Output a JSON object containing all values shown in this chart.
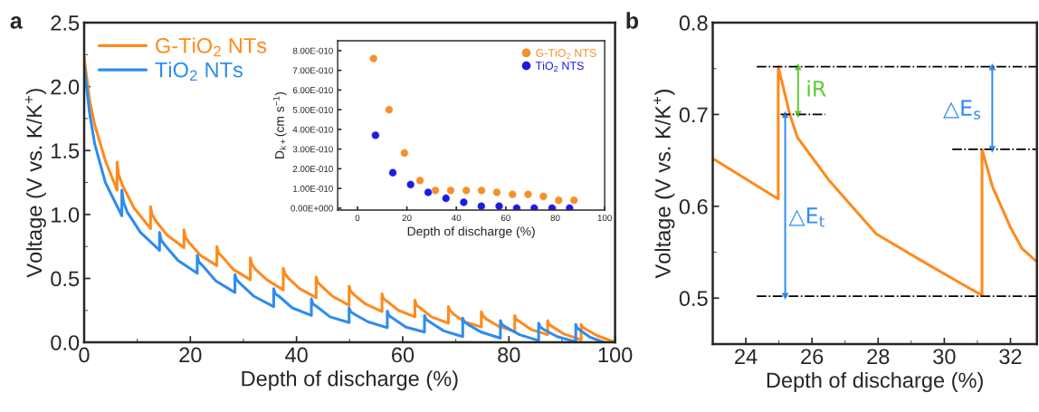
{
  "chart_data": [
    {
      "type": "line",
      "title": "a",
      "xlabel": "Depth of discharge (%)",
      "ylabel": "Voltage (V vs. K/K$^{+}$)",
      "xlim": [
        0,
        100
      ],
      "xticks": [
        0,
        20,
        40,
        60,
        80,
        100
      ],
      "ylim": [
        0,
        2.5
      ],
      "yticks": [
        {
          "value": 0,
          "label": "0.0"
        },
        0.5,
        {
          "value": 1,
          "label": "1.0"
        },
        1.5,
        {
          "value": 2,
          "label": "2.0"
        },
        2.5
      ],
      "legend": "top left",
      "grid": false,
      "series": [
        {
          "name": "G-TiO$_{2}$ NTs",
          "color": "#ff8a1c",
          "x": [
            0,
            1,
            2,
            4,
            6.2,
            6.2,
            6.5,
            7.2,
            9.4,
            12.5,
            12.5,
            12.8,
            13.5,
            15.6,
            18.8,
            18.8,
            19.1,
            19.8,
            21.9,
            25,
            25,
            25.3,
            26,
            28.1,
            31.3,
            31.3,
            31.6,
            32.3,
            34.4,
            37.5,
            37.5,
            37.8,
            38.5,
            40.6,
            43.7,
            43.7,
            44,
            44.7,
            46.8,
            49.9,
            49.9,
            50.2,
            50.9,
            53,
            56.1,
            56.1,
            56.4,
            57.1,
            59.2,
            62.3,
            62.3,
            62.6,
            63.3,
            65.4,
            68.6,
            68.6,
            68.9,
            69.6,
            71.7,
            74.8,
            74.8,
            75.1,
            75.8,
            77.9,
            81.1,
            81.1,
            81.4,
            82.1,
            84.2,
            87.3,
            87.3,
            87.6,
            88.3,
            90.4,
            93.6,
            93.6,
            93.9,
            94.6,
            96.8,
            100
          ],
          "values": [
            2.23,
            1.9,
            1.7,
            1.42,
            1.19,
            1.41,
            1.31,
            1.23,
            1.05,
            0.89,
            1.06,
            1.0,
            0.95,
            0.84,
            0.74,
            0.88,
            0.82,
            0.78,
            0.68,
            0.6,
            0.75,
            0.7,
            0.67,
            0.57,
            0.49,
            0.66,
            0.61,
            0.57,
            0.49,
            0.41,
            0.58,
            0.54,
            0.5,
            0.42,
            0.35,
            0.51,
            0.47,
            0.44,
            0.36,
            0.29,
            0.44,
            0.4,
            0.37,
            0.3,
            0.24,
            0.38,
            0.34,
            0.32,
            0.25,
            0.2,
            0.33,
            0.29,
            0.27,
            0.2,
            0.15,
            0.28,
            0.25,
            0.22,
            0.16,
            0.12,
            0.24,
            0.21,
            0.18,
            0.13,
            0.085,
            0.21,
            0.18,
            0.16,
            0.1,
            0.06,
            0.17,
            0.14,
            0.12,
            0.065,
            0.02,
            0.14,
            0.12,
            0.1,
            0.05,
            0.0
          ]
        },
        {
          "name": "TiO$_{2}$ NTs",
          "color": "#2d8cf0",
          "x": [
            0,
            1,
            2,
            4,
            7.1,
            7.1,
            7.4,
            8.1,
            10.6,
            14.2,
            14.2,
            14.5,
            15.2,
            17.7,
            21.3,
            21.3,
            21.6,
            22.3,
            24.8,
            28.4,
            28.4,
            28.7,
            29.4,
            32,
            35.7,
            35.7,
            36,
            36.7,
            39.2,
            42.8,
            42.8,
            43.1,
            43.8,
            46.3,
            49.9,
            49.9,
            50.2,
            50.9,
            53.5,
            57.1,
            57.1,
            57.4,
            58.1,
            60.6,
            64.1,
            64.1,
            64.4,
            65.1,
            67.7,
            71.3,
            71.3,
            71.6,
            72.3,
            74.8,
            78.4,
            78.4,
            78.7,
            79.4,
            82,
            85.6,
            85.6,
            85.9,
            86.6,
            89.1,
            92.6,
            92.6,
            92.9,
            93.6,
            95.3,
            98
          ],
          "values": [
            2.16,
            1.8,
            1.55,
            1.25,
            0.99,
            1.19,
            1.1,
            1.02,
            0.86,
            0.72,
            0.86,
            0.8,
            0.76,
            0.64,
            0.54,
            0.68,
            0.63,
            0.6,
            0.48,
            0.39,
            0.53,
            0.49,
            0.46,
            0.36,
            0.28,
            0.42,
            0.38,
            0.36,
            0.27,
            0.21,
            0.34,
            0.3,
            0.28,
            0.2,
            0.155,
            0.27,
            0.24,
            0.22,
            0.16,
            0.115,
            0.245,
            0.21,
            0.19,
            0.12,
            0.08,
            0.21,
            0.18,
            0.16,
            0.09,
            0.045,
            0.19,
            0.16,
            0.14,
            0.08,
            0.033,
            0.17,
            0.14,
            0.12,
            0.06,
            0.014,
            0.15,
            0.12,
            0.1,
            0.045,
            0.005,
            0.14,
            0.11,
            0.09,
            0.04,
            0.0
          ]
        }
      ]
    },
    {
      "type": "scatter",
      "xlabel": "Depth of discharge (%)",
      "ylabel": "D$_{k+}$(cm s$^{−1}$)",
      "xlim": [
        -8,
        100
      ],
      "xticks": [
        0,
        20,
        40,
        60,
        80,
        100
      ],
      "ylim": [
        -1e-11,
        8.5e-10
      ],
      "yticks": [
        {
          "value": 0,
          "label": "0.00E+000"
        },
        {
          "value": 1e-10,
          "label": "1.00E-010"
        },
        {
          "value": 2e-10,
          "label": "2.00E-010"
        },
        {
          "value": 3e-10,
          "label": "3.00E-010"
        },
        {
          "value": 4e-10,
          "label": "4.00E-010"
        },
        {
          "value": 5e-10,
          "label": "5.00E-010"
        },
        {
          "value": 6e-10,
          "label": "6.00E-010"
        },
        {
          "value": 7e-10,
          "label": "7.00E-010"
        },
        {
          "value": 8e-10,
          "label": "8.00E-010"
        }
      ],
      "legend": "top right",
      "marker": "circle",
      "grid": false,
      "series": [
        {
          "name": "G-TiO$_{2}$ NTS",
          "color": "#f5902a",
          "x": [
            6.5,
            12.8,
            19,
            25.3,
            31.5,
            37.7,
            44,
            50.2,
            56.4,
            62.7,
            69,
            75.2,
            81.4,
            87.6
          ],
          "values": [
            7.6e-10,
            5e-10,
            2.8e-10,
            1.4e-10,
            9e-11,
            9e-11,
            9e-11,
            9e-11,
            8e-11,
            7e-11,
            7e-11,
            6e-11,
            4e-11,
            4e-11
          ]
        },
        {
          "name": "TiO$_{2}$ NTS",
          "color": "#1c1ce0",
          "x": [
            7.3,
            14.3,
            21.5,
            28.6,
            35.8,
            43,
            50.1,
            57.3,
            64.4,
            71.5,
            78.7,
            85.8
          ],
          "values": [
            3.7e-10,
            1.8e-10,
            1.2e-10,
            8e-11,
            5e-11,
            3e-11,
            1e-11,
            1e-11,
            0,
            0,
            0,
            0
          ]
        }
      ]
    },
    {
      "type": "line",
      "title": "b",
      "xlabel": "Depth of discharge (%)",
      "ylabel": "Voltage (V vs. K/K$^{+}$)",
      "xlim": [
        23,
        32.8
      ],
      "xticks": [
        24,
        26,
        28,
        30,
        32
      ],
      "ylim": [
        0.45,
        0.8
      ],
      "yticks": [
        0.5,
        0.6,
        0.7,
        0.8
      ],
      "grid": false,
      "series": [
        {
          "color": "#ff8a1c",
          "x": [
            23,
            24.98,
            24.98,
            25.33,
            25.56,
            26.5,
            27.94,
            29.3,
            30.55,
            31.14,
            31.14,
            31.45,
            32.0,
            32.35,
            32.75
          ],
          "values": [
            0.652,
            0.608,
            0.752,
            0.7,
            0.675,
            0.629,
            0.57,
            0.541,
            0.515,
            0.503,
            0.662,
            0.622,
            0.577,
            0.554,
            0.541
          ]
        },
        {
          "color": "#000000",
          "line_style": "dashdot",
          "x": [
            24.33,
            32.8
          ],
          "values": [
            0.752,
            0.752
          ]
        },
        {
          "color": "#000000",
          "line_style": "dashdot",
          "x": [
            25.05,
            26.4
          ],
          "values": [
            0.7,
            0.7
          ]
        },
        {
          "color": "#000000",
          "line_style": "dashdot",
          "x": [
            30.24,
            32.8
          ],
          "values": [
            0.662,
            0.662
          ]
        },
        {
          "color": "#000000",
          "line_style": "dashdot",
          "x": [
            24.33,
            32.8
          ],
          "values": [
            0.502,
            0.502
          ]
        },
        {
          "color": "#5ccc2e",
          "marker": "triangle",
          "x": [
            25.58,
            25.58
          ],
          "values": [
            0.7,
            0.752
          ]
        },
        {
          "color": "#2d8cf0",
          "marker": "triangle",
          "x": [
            25.19,
            25.19
          ],
          "values": [
            0.502,
            0.7
          ]
        },
        {
          "color": "#2d8cf0",
          "marker": "triangle",
          "x": [
            31.45,
            31.45
          ],
          "values": [
            0.662,
            0.752
          ]
        }
      ],
      "annotations": [
        "iR",
        "△E$_{t}$",
        "△E$_{s}$"
      ]
    }
  ]
}
